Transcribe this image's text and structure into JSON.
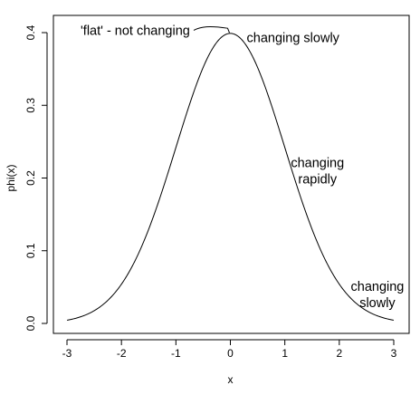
{
  "chart_data": {
    "type": "line",
    "title": "",
    "xlabel": "x",
    "ylabel": "phi(x)",
    "xlim": [
      -3,
      3
    ],
    "ylim": [
      0,
      0.4
    ],
    "x_ticks": [
      -3,
      -2,
      -1,
      0,
      1,
      2,
      3
    ],
    "x_tick_labels": [
      "-3",
      "-2",
      "-1",
      "0",
      "1",
      "2",
      "3"
    ],
    "y_ticks": [
      0,
      0.1,
      0.2,
      0.3,
      0.4
    ],
    "y_tick_labels": [
      "0.0",
      "0.1",
      "0.2",
      "0.3",
      "0.4"
    ],
    "grid": false,
    "series": [
      {
        "function": "standard normal density",
        "x": [
          -3,
          -2.5,
          -2,
          -1.5,
          -1,
          -0.5,
          0,
          0.5,
          1,
          1.5,
          2,
          2.5,
          3
        ],
        "y": [
          0.0044,
          0.0175,
          0.054,
          0.1295,
          0.242,
          0.3521,
          0.3989,
          0.3521,
          0.242,
          0.1295,
          0.054,
          0.0175,
          0.0044
        ]
      }
    ],
    "annotations": [
      {
        "lines": [
          "'flat' - not changing"
        ],
        "x": -2.75,
        "y": 0.397,
        "anchor": "start",
        "pointer_to": [
          -0.05,
          0.406
        ]
      },
      {
        "lines": [
          "changing slowly"
        ],
        "x": 0.3,
        "y": 0.387,
        "anchor": "start"
      },
      {
        "lines": [
          "changing",
          "rapidly"
        ],
        "x": 1.6,
        "y": 0.215,
        "anchor": "middle"
      },
      {
        "lines": [
          "changing",
          "slowly"
        ],
        "x": 2.7,
        "y": 0.045,
        "anchor": "middle"
      }
    ]
  }
}
